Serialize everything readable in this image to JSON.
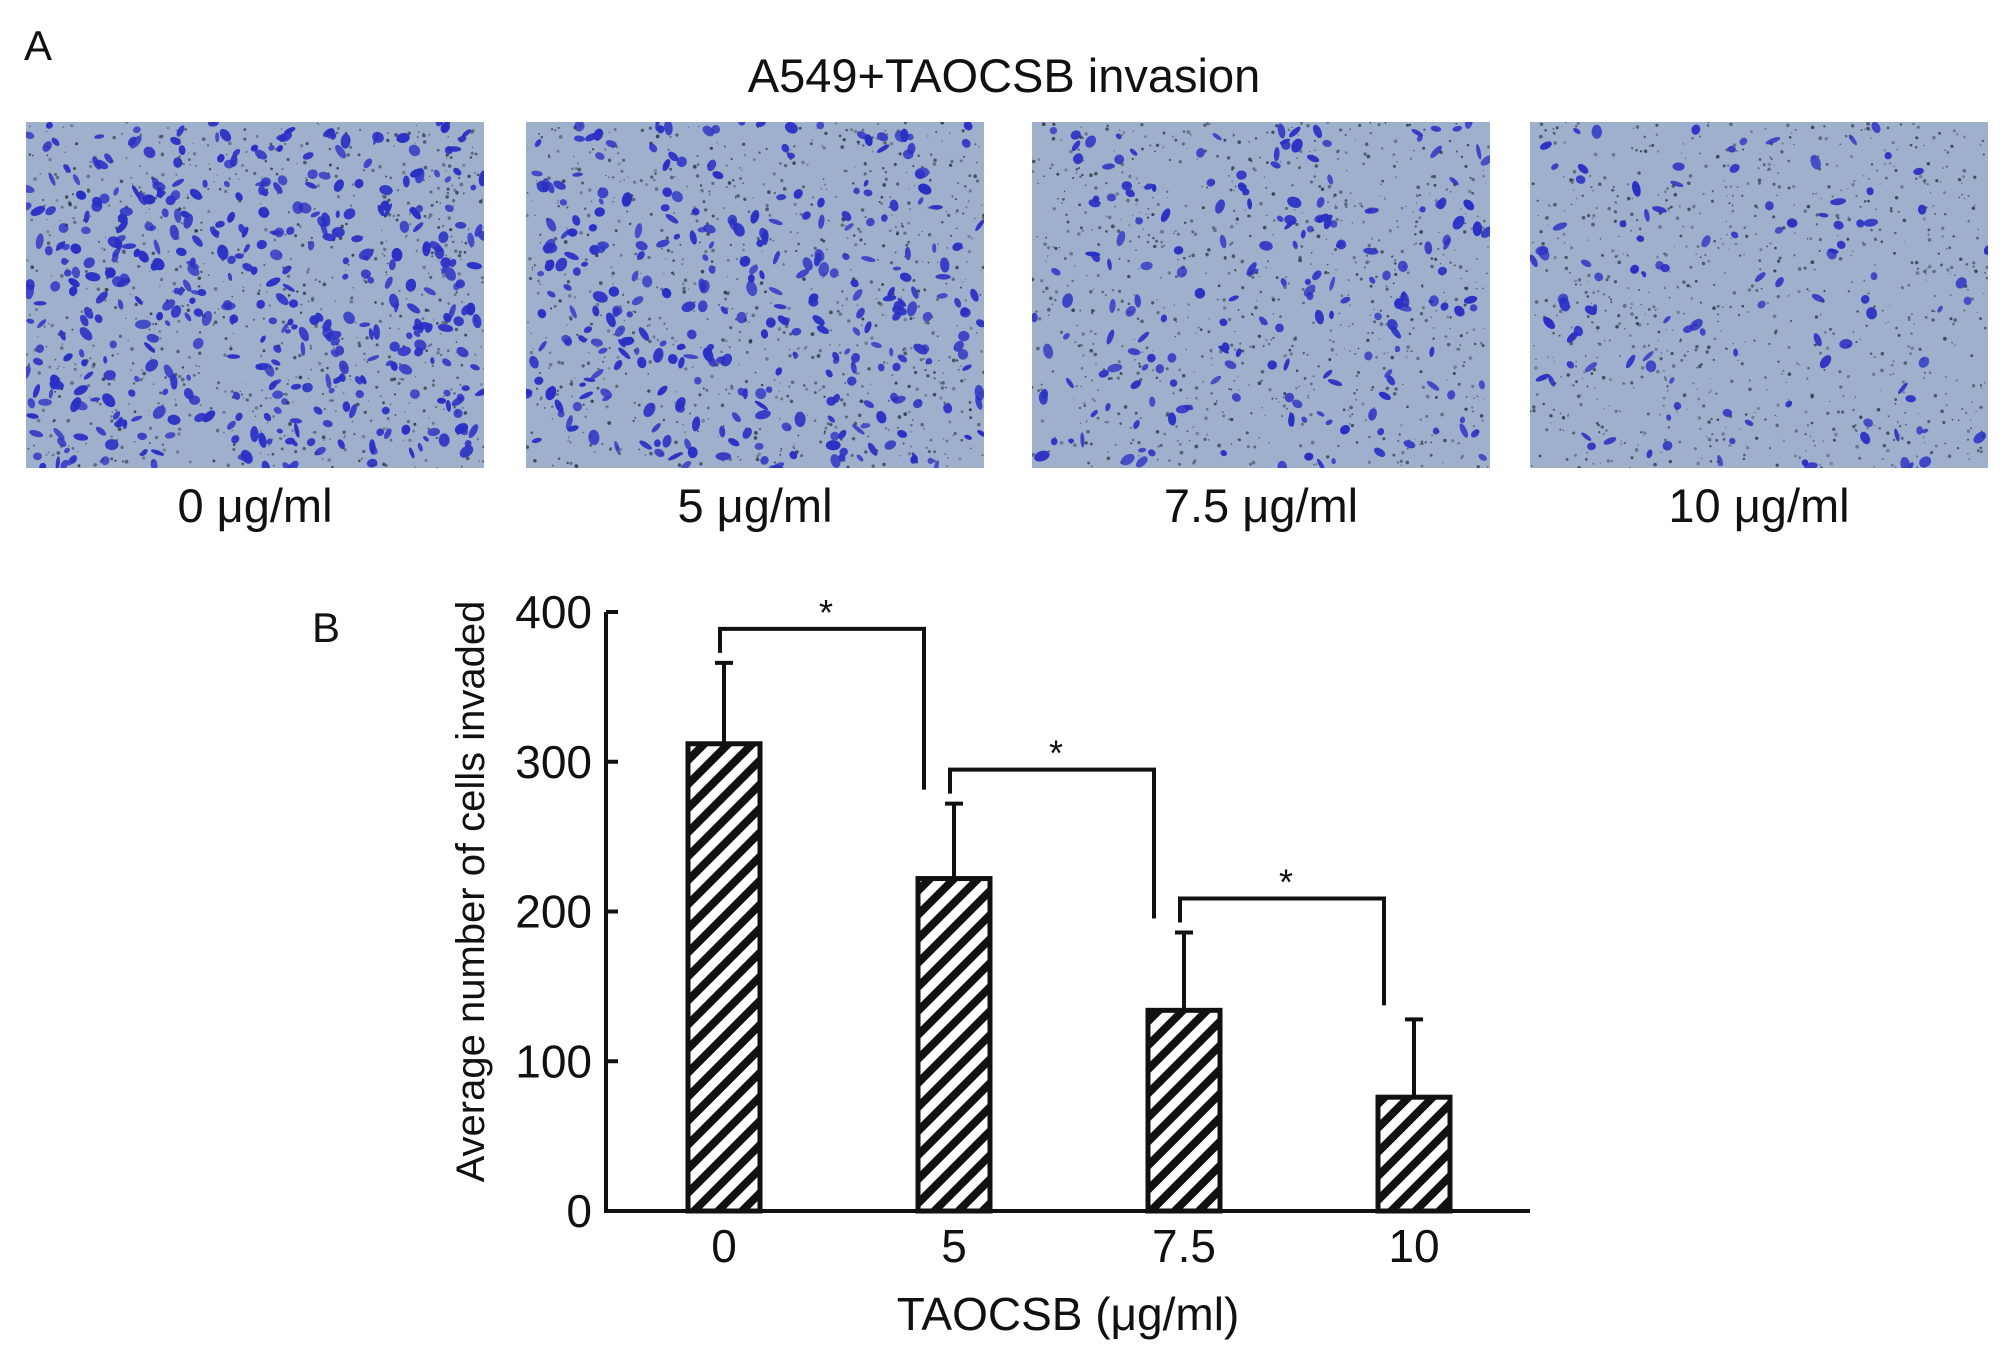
{
  "panel_a": {
    "letter": "A",
    "title": "A549+TAOCSB invasion",
    "images": [
      {
        "label": "0 μg/ml",
        "cell_density": 1.0
      },
      {
        "label": "5 μg/ml",
        "cell_density": 0.72
      },
      {
        "label": "7.5 μg/ml",
        "cell_density": 0.45
      },
      {
        "label": "10 μg/ml",
        "cell_density": 0.25
      }
    ],
    "colors": {
      "background": "#9fb0cd",
      "cells": "#2a2fc4",
      "pores": "#2b3140"
    }
  },
  "panel_b": {
    "letter": "B"
  },
  "chart_data": {
    "type": "bar",
    "categories": [
      "0",
      "5",
      "7.5",
      "10"
    ],
    "values": [
      312,
      222,
      134,
      76
    ],
    "errors": [
      54,
      50,
      52,
      52
    ],
    "xlabel": "TAOCSB (μg/ml)",
    "ylabel": "Average number of cells invaded",
    "ylim": [
      0,
      400
    ],
    "yticks": [
      "0",
      "100",
      "200",
      "300",
      "400"
    ],
    "bar_fill": "diagonal-hatch",
    "significance": [
      {
        "from": 0,
        "to": 1,
        "label": "*"
      },
      {
        "from": 1,
        "to": 2,
        "label": "*"
      },
      {
        "from": 2,
        "to": 3,
        "label": "*"
      }
    ]
  }
}
